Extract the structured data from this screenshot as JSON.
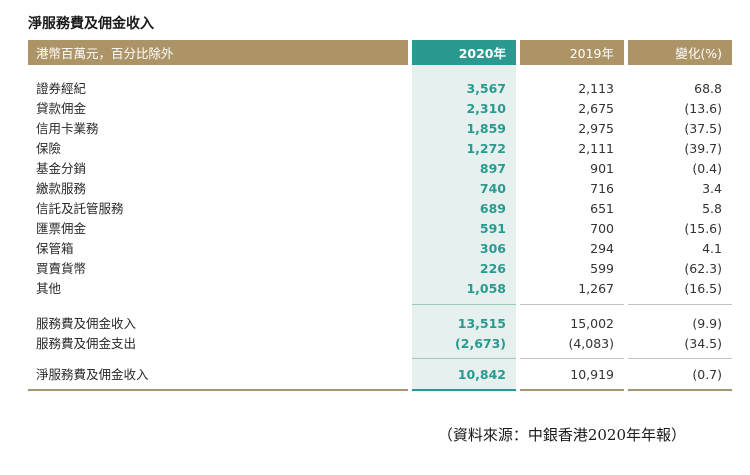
{
  "title": "淨服務費及佣金收入",
  "header": {
    "label": "港幣百萬元，百分比除外",
    "col_2020": "2020年",
    "col_2019": "2019年",
    "col_change": "變化(%)"
  },
  "items": [
    {
      "label": "證券經紀",
      "v2020": "3,567",
      "v2019": "2,113",
      "change": "68.8"
    },
    {
      "label": "貸款佣金",
      "v2020": "2,310",
      "v2019": "2,675",
      "change": "(13.6)"
    },
    {
      "label": "信用卡業務",
      "v2020": "1,859",
      "v2019": "2,975",
      "change": "(37.5)"
    },
    {
      "label": "保險",
      "v2020": "1,272",
      "v2019": "2,111",
      "change": "(39.7)"
    },
    {
      "label": "基金分銷",
      "v2020": "897",
      "v2019": "901",
      "change": "(0.4)"
    },
    {
      "label": "繳款服務",
      "v2020": "740",
      "v2019": "716",
      "change": "3.4"
    },
    {
      "label": "信託及託管服務",
      "v2020": "689",
      "v2019": "651",
      "change": "5.8"
    },
    {
      "label": "匯票佣金",
      "v2020": "591",
      "v2019": "700",
      "change": "(15.6)"
    },
    {
      "label": "保管箱",
      "v2020": "306",
      "v2019": "294",
      "change": "4.1"
    },
    {
      "label": "買賣貨幣",
      "v2020": "226",
      "v2019": "599",
      "change": "(62.3)"
    },
    {
      "label": "其他",
      "v2020": "1,058",
      "v2019": "1,267",
      "change": "(16.5)"
    }
  ],
  "subtotals": [
    {
      "label": "服務費及佣金收入",
      "v2020": "13,515",
      "v2019": "15,002",
      "change": "(9.9)"
    },
    {
      "label": "服務費及佣金支出",
      "v2020": "(2,673)",
      "v2019": "(4,083)",
      "change": "(34.5)"
    }
  ],
  "total": {
    "label": "淨服務費及佣金收入",
    "v2020": "10,842",
    "v2019": "10,919",
    "change": "(0.7)"
  },
  "source": "（資料來源：中銀香港2020年年報）",
  "colors": {
    "header_gold": "#ad9467",
    "accent_teal": "#2a9a90",
    "teal_tint": "#e6f1ef"
  }
}
